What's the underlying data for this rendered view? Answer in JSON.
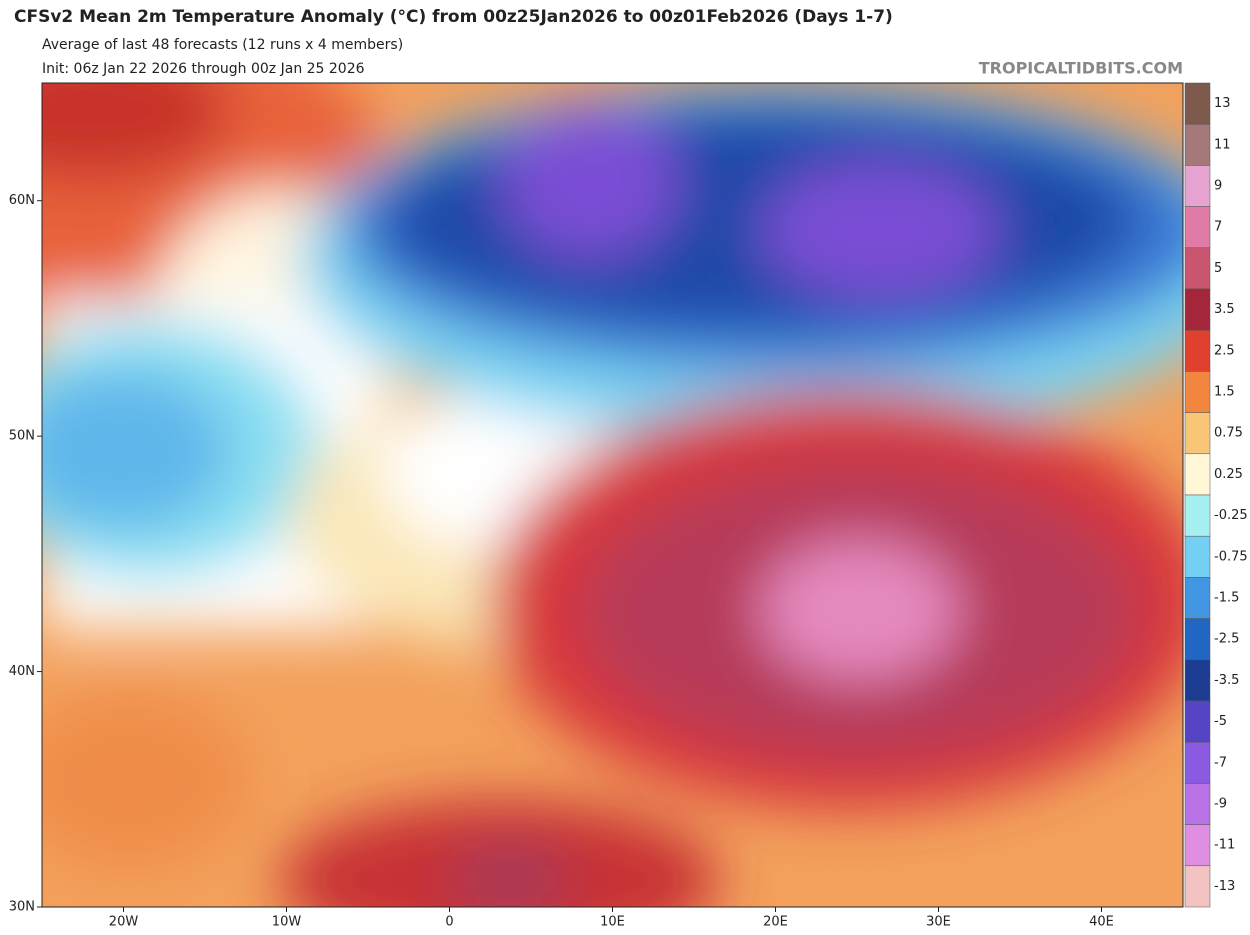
{
  "header": {
    "title": "CFSv2 Mean 2m Temperature Anomaly (°C) from 00z25Jan2026 to 00z01Feb2026 (Days 1-7)",
    "subtitle": "Average of last 48 forecasts (12 runs x 4 members)",
    "init": "Init: 06z Jan 22 2026 through 00z Jan 25 2026",
    "watermark": "TROPICALTIDBITS.COM"
  },
  "map": {
    "lon_range": [
      -25,
      45
    ],
    "lat_range": [
      30,
      65
    ],
    "lat_ticks": [
      {
        "value": 60,
        "label": "60N"
      },
      {
        "value": 50,
        "label": "50N"
      },
      {
        "value": 40,
        "label": "40N"
      },
      {
        "value": 30,
        "label": "30N"
      }
    ],
    "lon_ticks": [
      {
        "value": -20,
        "label": "20W"
      },
      {
        "value": -10,
        "label": "10W"
      },
      0,
      {
        "value": 10,
        "label": "10E"
      },
      {
        "value": 20,
        "label": "20E"
      },
      {
        "value": 30,
        "label": "30E"
      },
      {
        "value": 40,
        "label": "40E"
      }
    ]
  },
  "legend": {
    "levels": [
      13,
      11,
      9,
      7,
      5,
      3.5,
      2.5,
      1.5,
      0.75,
      0.25,
      -0.25,
      -0.75,
      -1.5,
      -2.5,
      -3.5,
      -5,
      -7,
      -9,
      -11,
      -13
    ],
    "colors": [
      "#7d5a4c",
      "#a5787a",
      "#e6a2d0",
      "#e07aa6",
      "#c9566e",
      "#a3263a",
      "#e0402e",
      "#f3863f",
      "#f9c577",
      "#fff7d6",
      "#a6f0f2",
      "#74d0f2",
      "#4396e2",
      "#2266c4",
      "#1c3d92",
      "#5544c4",
      "#8a5ae0",
      "#b872e6",
      "#e08ee4",
      "#f3c2c2"
    ]
  }
}
